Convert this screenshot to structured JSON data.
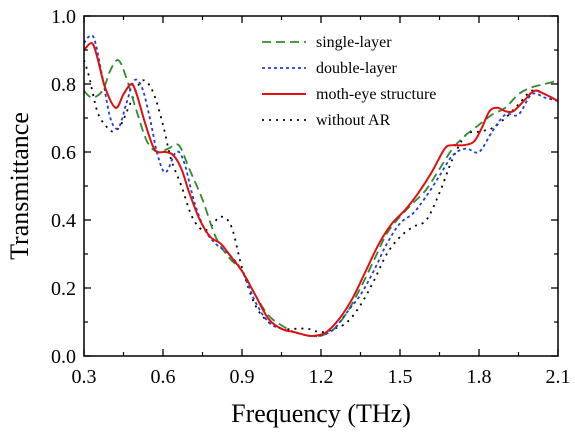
{
  "chart_data": {
    "type": "line",
    "title": "",
    "xlabel": "Frequency (THz)",
    "ylabel": "Transmittance",
    "xlim": [
      0.3,
      2.1
    ],
    "ylim": [
      0.0,
      1.0
    ],
    "xticks": [
      0.3,
      0.6,
      0.9,
      1.2,
      1.5,
      1.8,
      2.1
    ],
    "xtick_labels": [
      "0.3",
      "0.6",
      "0.9",
      "1.2",
      "1.5",
      "1.8",
      "2.1"
    ],
    "yticks": [
      0.0,
      0.2,
      0.4,
      0.6,
      0.8,
      1.0
    ],
    "ytick_labels": [
      "0.0",
      "0.2",
      "0.4",
      "0.6",
      "0.8",
      "1.0"
    ],
    "grid": false,
    "legend_position": "top-right",
    "series": [
      {
        "name": "single-layer",
        "color": "#2e8b2e",
        "dash": "dashed",
        "x": [
          0.3,
          0.33,
          0.37,
          0.4,
          0.43,
          0.46,
          0.5,
          0.54,
          0.58,
          0.62,
          0.66,
          0.7,
          0.75,
          0.8,
          0.85,
          0.9,
          0.95,
          1.0,
          1.05,
          1.1,
          1.15,
          1.2,
          1.25,
          1.3,
          1.35,
          1.4,
          1.45,
          1.5,
          1.55,
          1.6,
          1.65,
          1.7,
          1.75,
          1.8,
          1.85,
          1.9,
          1.95,
          2.0,
          2.05,
          2.1
        ],
        "y": [
          0.78,
          0.76,
          0.78,
          0.84,
          0.87,
          0.82,
          0.72,
          0.63,
          0.6,
          0.61,
          0.62,
          0.55,
          0.46,
          0.35,
          0.29,
          0.25,
          0.18,
          0.12,
          0.09,
          0.07,
          0.06,
          0.06,
          0.08,
          0.13,
          0.2,
          0.28,
          0.36,
          0.41,
          0.45,
          0.49,
          0.55,
          0.61,
          0.65,
          0.68,
          0.71,
          0.73,
          0.77,
          0.79,
          0.8,
          0.81
        ]
      },
      {
        "name": "double-layer",
        "color": "#1f3fd6",
        "dash": "dotted",
        "x": [
          0.3,
          0.32,
          0.34,
          0.37,
          0.4,
          0.43,
          0.46,
          0.49,
          0.52,
          0.55,
          0.58,
          0.61,
          0.65,
          0.68,
          0.72,
          0.76,
          0.8,
          0.85,
          0.9,
          0.95,
          1.0,
          1.05,
          1.1,
          1.15,
          1.2,
          1.25,
          1.3,
          1.35,
          1.4,
          1.45,
          1.5,
          1.55,
          1.6,
          1.65,
          1.7,
          1.75,
          1.8,
          1.85,
          1.9,
          1.95,
          2.0,
          2.05,
          2.1
        ],
        "y": [
          0.92,
          0.94,
          0.93,
          0.82,
          0.7,
          0.67,
          0.74,
          0.81,
          0.79,
          0.7,
          0.59,
          0.54,
          0.6,
          0.57,
          0.45,
          0.37,
          0.33,
          0.3,
          0.25,
          0.16,
          0.1,
          0.08,
          0.07,
          0.06,
          0.06,
          0.08,
          0.13,
          0.18,
          0.25,
          0.33,
          0.39,
          0.42,
          0.47,
          0.53,
          0.59,
          0.61,
          0.6,
          0.66,
          0.71,
          0.71,
          0.77,
          0.76,
          0.75
        ]
      },
      {
        "name": "moth-eye structure",
        "color": "#e01010",
        "dash": "solid",
        "x": [
          0.3,
          0.33,
          0.35,
          0.38,
          0.42,
          0.45,
          0.48,
          0.5,
          0.53,
          0.56,
          0.58,
          0.61,
          0.64,
          0.67,
          0.7,
          0.74,
          0.78,
          0.82,
          0.86,
          0.9,
          0.95,
          1.0,
          1.05,
          1.1,
          1.15,
          1.18,
          1.22,
          1.27,
          1.32,
          1.37,
          1.42,
          1.47,
          1.52,
          1.57,
          1.62,
          1.67,
          1.7,
          1.74,
          1.78,
          1.81,
          1.84,
          1.87,
          1.9,
          1.93,
          1.97,
          2.01,
          2.05,
          2.1
        ],
        "y": [
          0.9,
          0.92,
          0.88,
          0.79,
          0.73,
          0.77,
          0.8,
          0.77,
          0.69,
          0.62,
          0.6,
          0.6,
          0.59,
          0.55,
          0.48,
          0.4,
          0.35,
          0.33,
          0.29,
          0.25,
          0.18,
          0.11,
          0.08,
          0.07,
          0.06,
          0.06,
          0.07,
          0.11,
          0.17,
          0.25,
          0.33,
          0.39,
          0.43,
          0.48,
          0.54,
          0.61,
          0.62,
          0.62,
          0.63,
          0.67,
          0.72,
          0.73,
          0.72,
          0.72,
          0.75,
          0.78,
          0.77,
          0.75
        ]
      },
      {
        "name": "without AR",
        "color": "#000000",
        "dash": "dotted-sparse",
        "x": [
          0.3,
          0.32,
          0.35,
          0.38,
          0.41,
          0.44,
          0.48,
          0.52,
          0.56,
          0.6,
          0.63,
          0.67,
          0.71,
          0.75,
          0.78,
          0.82,
          0.86,
          0.9,
          0.95,
          1.0,
          1.05,
          1.1,
          1.15,
          1.2,
          1.25,
          1.3,
          1.35,
          1.4,
          1.45,
          1.5,
          1.55,
          1.6,
          1.65,
          1.7,
          1.75,
          1.8,
          1.85,
          1.9,
          1.95,
          2.0,
          2.05,
          2.1
        ],
        "y": [
          0.87,
          0.82,
          0.72,
          0.68,
          0.66,
          0.68,
          0.75,
          0.81,
          0.78,
          0.68,
          0.58,
          0.5,
          0.41,
          0.37,
          0.38,
          0.41,
          0.38,
          0.26,
          0.15,
          0.1,
          0.08,
          0.08,
          0.08,
          0.07,
          0.08,
          0.1,
          0.15,
          0.22,
          0.3,
          0.35,
          0.38,
          0.4,
          0.48,
          0.58,
          0.65,
          0.66,
          0.67,
          0.7,
          0.74,
          0.78,
          0.77,
          0.75
        ]
      }
    ]
  }
}
